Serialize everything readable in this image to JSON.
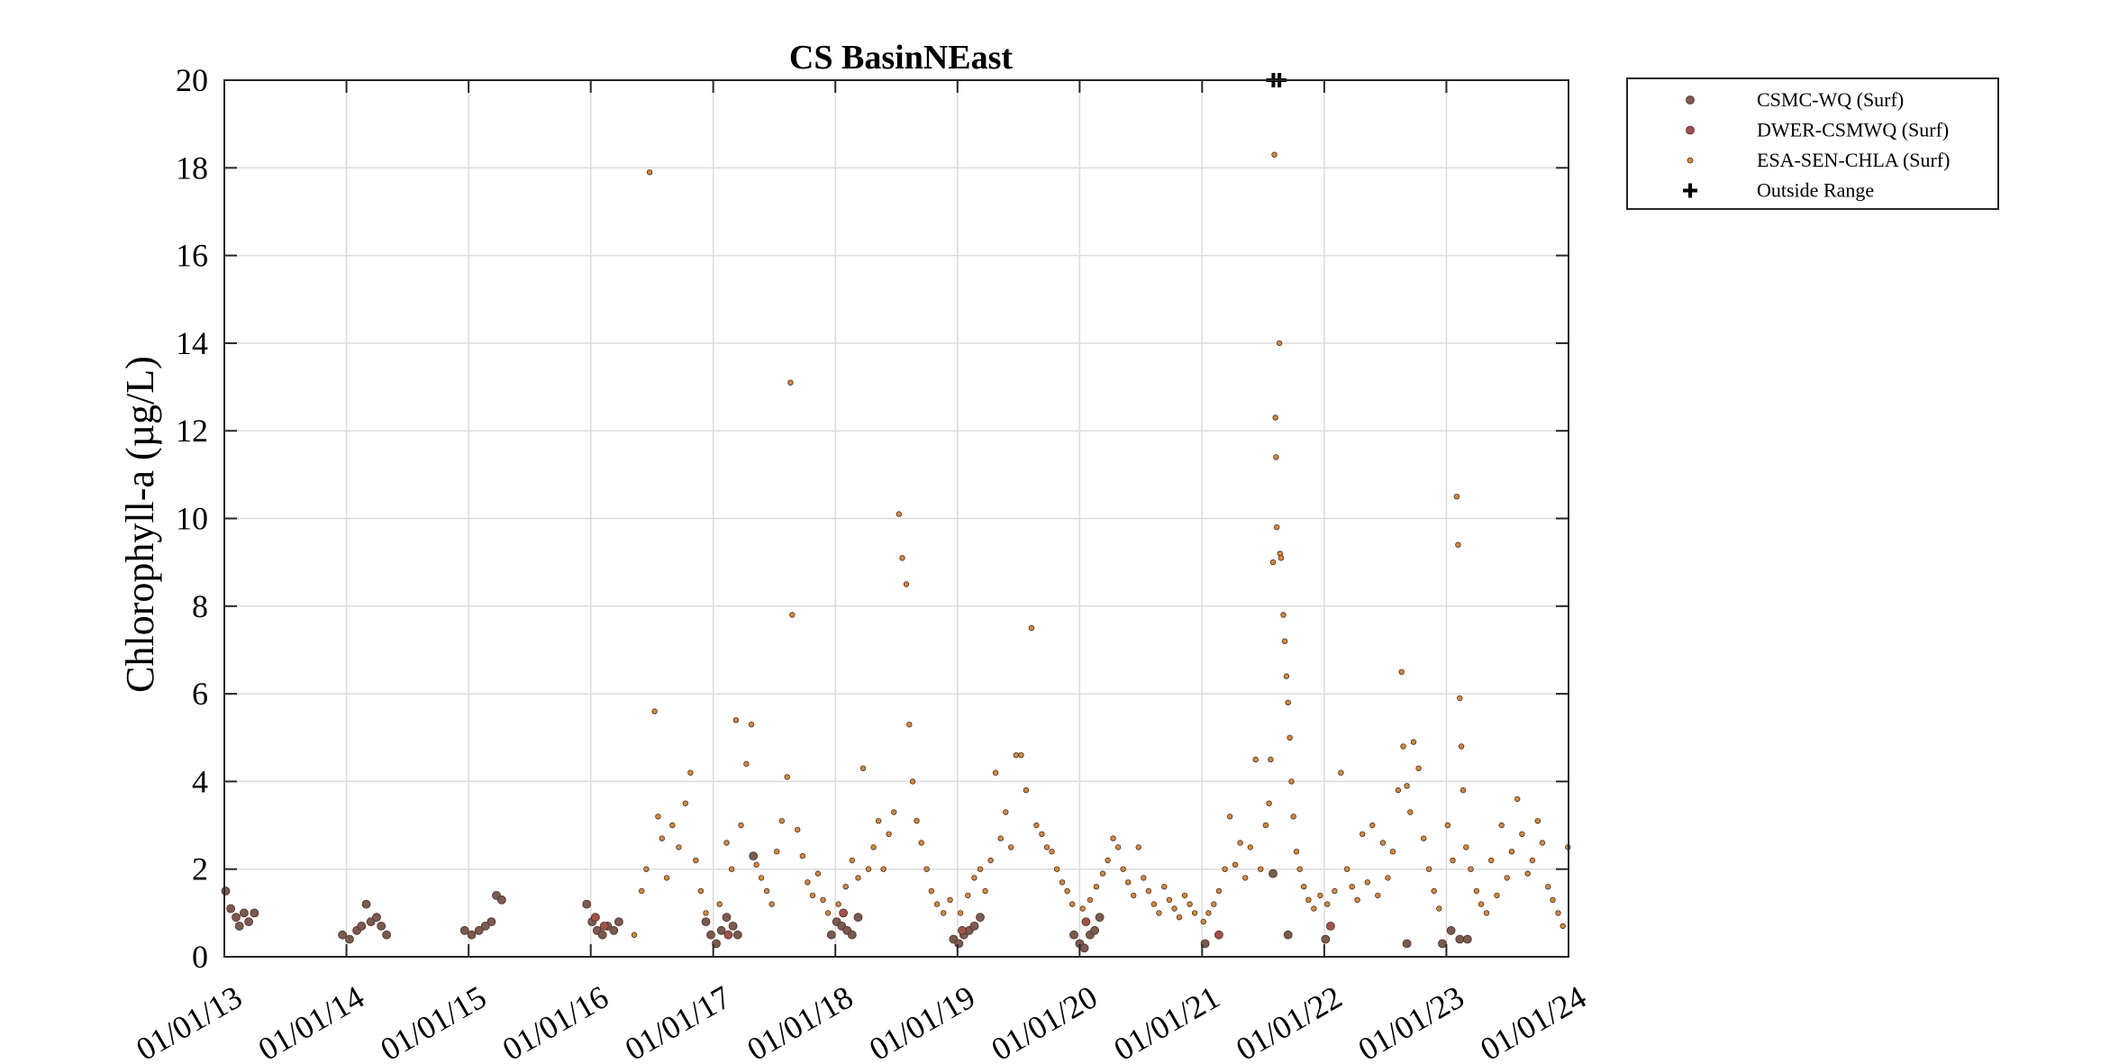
{
  "chart_data": {
    "type": "scatter",
    "title": "CS BasinNEast",
    "ylabel": "Chlorophyll-a (µg/L)",
    "xlabel": "",
    "ylim": [
      0,
      20
    ],
    "yticks": [
      0,
      2,
      4,
      6,
      8,
      10,
      12,
      14,
      16,
      18,
      20
    ],
    "xlim": [
      "2013-01-01",
      "2024-01-01"
    ],
    "xticks": [
      "2013-01-01",
      "2014-01-01",
      "2015-01-01",
      "2016-01-01",
      "2017-01-01",
      "2018-01-01",
      "2019-01-01",
      "2020-01-01",
      "2021-01-01",
      "2022-01-01",
      "2023-01-01",
      "2024-01-01"
    ],
    "xtick_labels": [
      "01/01/13",
      "01/01/14",
      "01/01/15",
      "01/01/16",
      "01/01/17",
      "01/01/18",
      "01/01/19",
      "01/01/20",
      "01/01/21",
      "01/01/22",
      "01/01/23",
      "01/01/24"
    ],
    "grid": true,
    "legend_position": "outside top-right",
    "series": [
      {
        "name": "CSMC-WQ (Surf)",
        "marker": "filled-circle",
        "color": "#7b5a50",
        "points": [
          [
            "2013-01-05",
            1.5
          ],
          [
            "2013-01-20",
            1.1
          ],
          [
            "2013-02-05",
            0.9
          ],
          [
            "2013-02-15",
            0.7
          ],
          [
            "2013-03-01",
            1.0
          ],
          [
            "2013-03-15",
            0.8
          ],
          [
            "2013-04-01",
            1.0
          ],
          [
            "2013-12-20",
            0.5
          ],
          [
            "2014-01-10",
            0.4
          ],
          [
            "2014-02-01",
            0.6
          ],
          [
            "2014-02-15",
            0.7
          ],
          [
            "2014-03-01",
            1.2
          ],
          [
            "2014-03-15",
            0.8
          ],
          [
            "2014-04-01",
            0.9
          ],
          [
            "2014-04-15",
            0.7
          ],
          [
            "2014-05-01",
            0.5
          ],
          [
            "2014-12-20",
            0.6
          ],
          [
            "2015-01-10",
            0.5
          ],
          [
            "2015-02-01",
            0.6
          ],
          [
            "2015-02-20",
            0.7
          ],
          [
            "2015-03-10",
            0.8
          ],
          [
            "2015-03-25",
            1.4
          ],
          [
            "2015-04-10",
            1.3
          ],
          [
            "2015-12-20",
            1.2
          ],
          [
            "2016-01-05",
            0.8
          ],
          [
            "2016-01-20",
            0.6
          ],
          [
            "2016-02-05",
            0.5
          ],
          [
            "2016-02-20",
            0.7
          ],
          [
            "2016-03-10",
            0.6
          ],
          [
            "2016-03-25",
            0.8
          ],
          [
            "2016-12-10",
            0.8
          ],
          [
            "2016-12-25",
            0.5
          ],
          [
            "2017-01-10",
            0.3
          ],
          [
            "2017-01-25",
            0.6
          ],
          [
            "2017-02-10",
            0.9
          ],
          [
            "2017-03-01",
            0.7
          ],
          [
            "2017-03-15",
            0.5
          ],
          [
            "2017-05-01",
            2.3
          ],
          [
            "2017-12-20",
            0.5
          ],
          [
            "2018-01-05",
            0.8
          ],
          [
            "2018-01-20",
            0.7
          ],
          [
            "2018-02-05",
            0.6
          ],
          [
            "2018-02-20",
            0.5
          ],
          [
            "2018-03-10",
            0.9
          ],
          [
            "2018-12-20",
            0.4
          ],
          [
            "2019-01-05",
            0.3
          ],
          [
            "2019-01-20",
            0.5
          ],
          [
            "2019-02-05",
            0.6
          ],
          [
            "2019-02-20",
            0.7
          ],
          [
            "2019-03-10",
            0.9
          ],
          [
            "2019-12-15",
            0.5
          ],
          [
            "2020-01-01",
            0.3
          ],
          [
            "2020-01-15",
            0.2
          ],
          [
            "2020-02-01",
            0.5
          ],
          [
            "2020-02-15",
            0.6
          ],
          [
            "2020-03-01",
            0.9
          ],
          [
            "2021-01-10",
            0.3
          ],
          [
            "2021-08-01",
            1.9
          ],
          [
            "2021-09-15",
            0.5
          ],
          [
            "2022-01-05",
            0.4
          ],
          [
            "2022-09-05",
            0.3
          ],
          [
            "2022-12-20",
            0.3
          ],
          [
            "2023-01-15",
            0.6
          ],
          [
            "2023-02-10",
            0.4
          ],
          [
            "2023-03-05",
            0.4
          ]
        ]
      },
      {
        "name": "DWER-CSMWQ (Surf)",
        "marker": "filled-circle",
        "color": "#a0524a",
        "points": [
          [
            "2016-01-15",
            0.9
          ],
          [
            "2016-02-10",
            0.7
          ],
          [
            "2017-02-15",
            0.5
          ],
          [
            "2018-01-25",
            1.0
          ],
          [
            "2019-01-15",
            0.6
          ],
          [
            "2020-01-20",
            0.8
          ],
          [
            "2021-02-20",
            0.5
          ],
          [
            "2022-01-20",
            0.7
          ]
        ]
      },
      {
        "name": "ESA-SEN-CHLA (Surf)",
        "marker": "small-circle",
        "color": "#d48a3c",
        "points": [
          [
            "2016-05-10",
            0.5
          ],
          [
            "2016-06-01",
            1.5
          ],
          [
            "2016-06-15",
            2.0
          ],
          [
            "2016-06-25",
            17.9
          ],
          [
            "2016-07-10",
            5.6
          ],
          [
            "2016-07-20",
            3.2
          ],
          [
            "2016-08-01",
            2.7
          ],
          [
            "2016-08-15",
            1.8
          ],
          [
            "2016-09-01",
            3.0
          ],
          [
            "2016-09-20",
            2.5
          ],
          [
            "2016-10-10",
            3.5
          ],
          [
            "2016-10-25",
            4.2
          ],
          [
            "2016-11-10",
            2.2
          ],
          [
            "2016-11-25",
            1.5
          ],
          [
            "2016-12-10",
            1.0
          ],
          [
            "2017-01-20",
            1.2
          ],
          [
            "2017-02-10",
            2.6
          ],
          [
            "2017-02-25",
            2.0
          ],
          [
            "2017-03-10",
            5.4
          ],
          [
            "2017-03-25",
            3.0
          ],
          [
            "2017-04-10",
            4.4
          ],
          [
            "2017-04-25",
            5.3
          ],
          [
            "2017-05-10",
            2.1
          ],
          [
            "2017-05-25",
            1.8
          ],
          [
            "2017-06-10",
            1.5
          ],
          [
            "2017-06-25",
            1.2
          ],
          [
            "2017-07-10",
            2.4
          ],
          [
            "2017-07-25",
            3.1
          ],
          [
            "2017-08-10",
            4.1
          ],
          [
            "2017-08-20",
            13.1
          ],
          [
            "2017-08-25",
            7.8
          ],
          [
            "2017-09-10",
            2.9
          ],
          [
            "2017-09-25",
            2.3
          ],
          [
            "2017-10-10",
            1.7
          ],
          [
            "2017-10-25",
            1.4
          ],
          [
            "2017-11-10",
            1.9
          ],
          [
            "2017-11-25",
            1.3
          ],
          [
            "2017-12-10",
            1.0
          ],
          [
            "2018-01-10",
            1.2
          ],
          [
            "2018-02-01",
            1.6
          ],
          [
            "2018-02-20",
            2.2
          ],
          [
            "2018-03-10",
            1.8
          ],
          [
            "2018-03-25",
            4.3
          ],
          [
            "2018-04-10",
            2.0
          ],
          [
            "2018-04-25",
            2.5
          ],
          [
            "2018-05-10",
            3.1
          ],
          [
            "2018-05-25",
            2.0
          ],
          [
            "2018-06-10",
            2.8
          ],
          [
            "2018-06-25",
            3.3
          ],
          [
            "2018-07-10",
            10.1
          ],
          [
            "2018-07-20",
            9.1
          ],
          [
            "2018-08-01",
            8.5
          ],
          [
            "2018-08-10",
            5.3
          ],
          [
            "2018-08-20",
            4.0
          ],
          [
            "2018-09-01",
            3.1
          ],
          [
            "2018-09-15",
            2.6
          ],
          [
            "2018-10-01",
            2.0
          ],
          [
            "2018-10-15",
            1.5
          ],
          [
            "2018-11-01",
            1.2
          ],
          [
            "2018-11-20",
            1.0
          ],
          [
            "2018-12-10",
            1.3
          ],
          [
            "2019-01-10",
            1.0
          ],
          [
            "2019-02-01",
            1.4
          ],
          [
            "2019-02-20",
            1.8
          ],
          [
            "2019-03-10",
            2.0
          ],
          [
            "2019-03-25",
            1.5
          ],
          [
            "2019-04-10",
            2.2
          ],
          [
            "2019-04-25",
            4.2
          ],
          [
            "2019-05-10",
            2.7
          ],
          [
            "2019-05-25",
            3.3
          ],
          [
            "2019-06-10",
            2.5
          ],
          [
            "2019-06-25",
            4.6
          ],
          [
            "2019-07-10",
            4.6
          ],
          [
            "2019-07-25",
            3.8
          ],
          [
            "2019-08-10",
            7.5
          ],
          [
            "2019-08-25",
            3.0
          ],
          [
            "2019-09-10",
            2.8
          ],
          [
            "2019-09-25",
            2.5
          ],
          [
            "2019-10-10",
            2.4
          ],
          [
            "2019-10-25",
            2.0
          ],
          [
            "2019-11-10",
            1.7
          ],
          [
            "2019-11-25",
            1.5
          ],
          [
            "2019-12-10",
            1.2
          ],
          [
            "2020-01-10",
            1.1
          ],
          [
            "2020-02-01",
            1.3
          ],
          [
            "2020-02-20",
            1.6
          ],
          [
            "2020-03-10",
            1.9
          ],
          [
            "2020-03-25",
            2.2
          ],
          [
            "2020-04-10",
            2.7
          ],
          [
            "2020-04-25",
            2.5
          ],
          [
            "2020-05-10",
            2.0
          ],
          [
            "2020-05-25",
            1.7
          ],
          [
            "2020-06-10",
            1.4
          ],
          [
            "2020-06-25",
            2.5
          ],
          [
            "2020-07-10",
            1.8
          ],
          [
            "2020-07-25",
            1.5
          ],
          [
            "2020-08-10",
            1.2
          ],
          [
            "2020-08-25",
            1.0
          ],
          [
            "2020-09-10",
            1.6
          ],
          [
            "2020-09-25",
            1.3
          ],
          [
            "2020-10-10",
            1.1
          ],
          [
            "2020-10-25",
            0.9
          ],
          [
            "2020-11-10",
            1.4
          ],
          [
            "2020-11-25",
            1.2
          ],
          [
            "2020-12-10",
            1.0
          ],
          [
            "2021-01-05",
            0.8
          ],
          [
            "2021-01-20",
            1.0
          ],
          [
            "2021-02-05",
            1.2
          ],
          [
            "2021-02-20",
            1.5
          ],
          [
            "2021-03-10",
            2.0
          ],
          [
            "2021-03-25",
            3.2
          ],
          [
            "2021-04-10",
            2.1
          ],
          [
            "2021-04-25",
            2.6
          ],
          [
            "2021-05-10",
            1.8
          ],
          [
            "2021-05-25",
            2.5
          ],
          [
            "2021-06-10",
            4.5
          ],
          [
            "2021-06-25",
            2.0
          ],
          [
            "2021-07-10",
            3.0
          ],
          [
            "2021-07-20",
            3.5
          ],
          [
            "2021-07-25",
            4.5
          ],
          [
            "2021-08-01",
            9.0
          ],
          [
            "2021-08-05",
            18.3
          ],
          [
            "2021-08-08",
            12.3
          ],
          [
            "2021-08-10",
            11.4
          ],
          [
            "2021-08-12",
            9.8
          ],
          [
            "2021-08-20",
            14.0
          ],
          [
            "2021-08-22",
            9.2
          ],
          [
            "2021-08-25",
            9.1
          ],
          [
            "2021-09-01",
            7.8
          ],
          [
            "2021-09-05",
            7.2
          ],
          [
            "2021-09-10",
            6.4
          ],
          [
            "2021-09-15",
            5.8
          ],
          [
            "2021-09-20",
            5.0
          ],
          [
            "2021-09-25",
            4.0
          ],
          [
            "2021-10-01",
            3.2
          ],
          [
            "2021-10-10",
            2.4
          ],
          [
            "2021-10-20",
            2.0
          ],
          [
            "2021-11-01",
            1.6
          ],
          [
            "2021-11-15",
            1.3
          ],
          [
            "2021-12-01",
            1.1
          ],
          [
            "2021-12-20",
            1.4
          ],
          [
            "2022-01-10",
            1.2
          ],
          [
            "2022-02-01",
            1.5
          ],
          [
            "2022-02-20",
            4.2
          ],
          [
            "2022-03-10",
            2.0
          ],
          [
            "2022-03-25",
            1.6
          ],
          [
            "2022-04-10",
            1.3
          ],
          [
            "2022-04-25",
            2.8
          ],
          [
            "2022-05-10",
            1.7
          ],
          [
            "2022-05-25",
            3.0
          ],
          [
            "2022-06-10",
            1.4
          ],
          [
            "2022-06-25",
            2.6
          ],
          [
            "2022-07-10",
            1.8
          ],
          [
            "2022-07-25",
            2.4
          ],
          [
            "2022-08-10",
            3.8
          ],
          [
            "2022-08-20",
            6.5
          ],
          [
            "2022-08-25",
            4.8
          ],
          [
            "2022-09-05",
            3.9
          ],
          [
            "2022-09-15",
            3.3
          ],
          [
            "2022-09-25",
            4.9
          ],
          [
            "2022-10-10",
            4.3
          ],
          [
            "2022-10-25",
            2.7
          ],
          [
            "2022-11-10",
            2.0
          ],
          [
            "2022-11-25",
            1.5
          ],
          [
            "2022-12-10",
            1.1
          ],
          [
            "2023-01-05",
            3.0
          ],
          [
            "2023-01-20",
            2.2
          ],
          [
            "2023-02-01",
            10.5
          ],
          [
            "2023-02-05",
            9.4
          ],
          [
            "2023-02-10",
            5.9
          ],
          [
            "2023-02-15",
            4.8
          ],
          [
            "2023-02-20",
            3.8
          ],
          [
            "2023-03-01",
            2.5
          ],
          [
            "2023-03-15",
            2.0
          ],
          [
            "2023-04-01",
            1.5
          ],
          [
            "2023-04-15",
            1.2
          ],
          [
            "2023-05-01",
            1.0
          ],
          [
            "2023-05-15",
            2.2
          ],
          [
            "2023-06-01",
            1.4
          ],
          [
            "2023-06-15",
            3.0
          ],
          [
            "2023-07-01",
            1.8
          ],
          [
            "2023-07-15",
            2.4
          ],
          [
            "2023-08-01",
            3.6
          ],
          [
            "2023-08-15",
            2.8
          ],
          [
            "2023-09-01",
            1.9
          ],
          [
            "2023-09-15",
            2.2
          ],
          [
            "2023-10-01",
            3.1
          ],
          [
            "2023-10-15",
            2.6
          ],
          [
            "2023-11-01",
            1.6
          ],
          [
            "2023-11-15",
            1.3
          ],
          [
            "2023-12-01",
            1.0
          ],
          [
            "2023-12-15",
            0.7
          ],
          [
            "2023-12-30",
            2.5
          ]
        ]
      }
    ],
    "outside_range": {
      "name": "Outside Range",
      "marker": "plus",
      "color": "#000000",
      "points": [
        [
          "2021-08-02",
          20
        ],
        [
          "2021-08-20",
          20
        ]
      ]
    }
  }
}
